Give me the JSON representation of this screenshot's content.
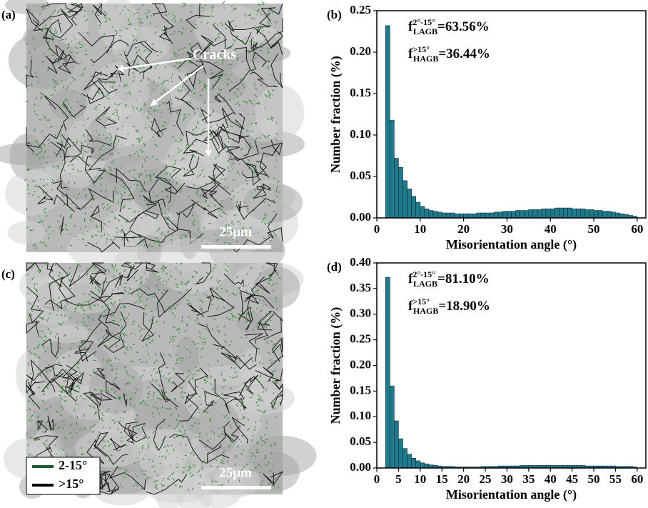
{
  "micrographs": [
    {
      "panel_label": "(a)",
      "annotation": "Cracks",
      "scale_bar": "25μm"
    },
    {
      "panel_label": "(c)",
      "scale_bar": "25μm",
      "legend": [
        {
          "label": "2-15°",
          "color": "#1e5a2e"
        },
        {
          "label": ">15°",
          "color": "#000000"
        }
      ]
    }
  ],
  "chart_data": [
    {
      "type": "histogram",
      "panel_label": "(b)",
      "x_label": "Misorientation angle (°)",
      "y_label": "Number fraction (%)",
      "annotations": [
        {
          "symbol": "f",
          "sup": "2°-15°",
          "sub": "LAGB",
          "text": "=63.56%"
        },
        {
          "symbol": "f",
          "sup": ">15°",
          "sub": "HAGB",
          "text": "=36.44%"
        }
      ],
      "color": "#1f7a8c",
      "bins": [
        2,
        3,
        4,
        5,
        6,
        7,
        8,
        9,
        10,
        11,
        12,
        13,
        14,
        15,
        16,
        17,
        18,
        19,
        20,
        21,
        22,
        23,
        24,
        25,
        26,
        27,
        28,
        29,
        30,
        31,
        32,
        33,
        34,
        35,
        36,
        37,
        38,
        39,
        40,
        41,
        42,
        43,
        44,
        45,
        46,
        47,
        48,
        49,
        50,
        51,
        52,
        53,
        54,
        55,
        56,
        57,
        58,
        59,
        60
      ],
      "values": [
        0.232,
        0.118,
        0.072,
        0.061,
        0.045,
        0.035,
        0.026,
        0.019,
        0.014,
        0.011,
        0.009,
        0.008,
        0.007,
        0.006,
        0.006,
        0.006,
        0.005,
        0.005,
        0.005,
        0.005,
        0.005,
        0.006,
        0.006,
        0.006,
        0.006,
        0.007,
        0.007,
        0.008,
        0.008,
        0.008,
        0.009,
        0.009,
        0.009,
        0.01,
        0.01,
        0.01,
        0.011,
        0.011,
        0.011,
        0.012,
        0.012,
        0.012,
        0.012,
        0.011,
        0.011,
        0.011,
        0.01,
        0.01,
        0.009,
        0.009,
        0.008,
        0.008,
        0.007,
        0.006,
        0.005,
        0.004,
        0.003,
        0.002
      ],
      "xlim": [
        0,
        62
      ],
      "xticks": [
        0,
        10,
        20,
        30,
        40,
        50,
        60
      ],
      "ylim": [
        0,
        0.25
      ],
      "yticks": [
        {
          "value": 0,
          "label": "0.00"
        },
        {
          "value": 0.05,
          "label": "0.05"
        },
        {
          "value": 0.1,
          "label": "0.10"
        },
        {
          "value": 0.15,
          "label": "0.15"
        },
        {
          "value": 0.2,
          "label": "0.20"
        },
        {
          "value": 0.25,
          "label": "0.25"
        }
      ]
    },
    {
      "type": "histogram",
      "panel_label": "(d)",
      "x_label": "Misorientation angle (°)",
      "y_label": "Number fraction (%)",
      "annotations": [
        {
          "symbol": "f",
          "sup": "2°-15°",
          "sub": "LAGB",
          "text": "=81.10%"
        },
        {
          "symbol": "f",
          "sup": ">15°",
          "sub": "HAGB",
          "text": "=18.90%"
        }
      ],
      "color": "#1f7a8c",
      "bins": [
        2,
        3,
        4,
        5,
        6,
        7,
        8,
        9,
        10,
        11,
        12,
        13,
        14,
        15,
        16,
        17,
        18,
        19,
        20,
        21,
        22,
        23,
        24,
        25,
        26,
        27,
        28,
        29,
        30,
        31,
        32,
        33,
        34,
        35,
        36,
        37,
        38,
        39,
        40,
        41,
        42,
        43,
        44,
        45,
        46,
        47,
        48,
        49,
        50,
        51,
        52,
        53,
        54,
        55,
        56,
        57,
        58,
        59,
        60
      ],
      "values": [
        0.372,
        0.16,
        0.092,
        0.057,
        0.038,
        0.027,
        0.019,
        0.014,
        0.01,
        0.008,
        0.006,
        0.005,
        0.004,
        0.003,
        0.003,
        0.003,
        0.002,
        0.002,
        0.002,
        0.002,
        0.002,
        0.002,
        0.003,
        0.003,
        0.003,
        0.003,
        0.004,
        0.004,
        0.004,
        0.004,
        0.004,
        0.005,
        0.005,
        0.005,
        0.005,
        0.005,
        0.005,
        0.005,
        0.005,
        0.005,
        0.005,
        0.005,
        0.005,
        0.005,
        0.005,
        0.005,
        0.004,
        0.004,
        0.004,
        0.004,
        0.004,
        0.004,
        0.004,
        0.003,
        0.003,
        0.003,
        0.003,
        0.002
      ],
      "xlim": [
        0,
        62
      ],
      "xticks": [
        0,
        5,
        10,
        15,
        20,
        25,
        30,
        35,
        40,
        45,
        50,
        55,
        60
      ],
      "ylim": [
        0,
        0.4
      ],
      "yticks": [
        {
          "value": 0,
          "label": "0.00"
        },
        {
          "value": 0.05,
          "label": "0.05"
        },
        {
          "value": 0.1,
          "label": "0.10"
        },
        {
          "value": 0.15,
          "label": "0.15"
        },
        {
          "value": 0.2,
          "label": "0.20"
        },
        {
          "value": 0.25,
          "label": "0.25"
        },
        {
          "value": 0.3,
          "label": "0.30"
        },
        {
          "value": 0.35,
          "label": "0.35"
        },
        {
          "value": 0.4,
          "label": "0.40"
        }
      ]
    }
  ]
}
